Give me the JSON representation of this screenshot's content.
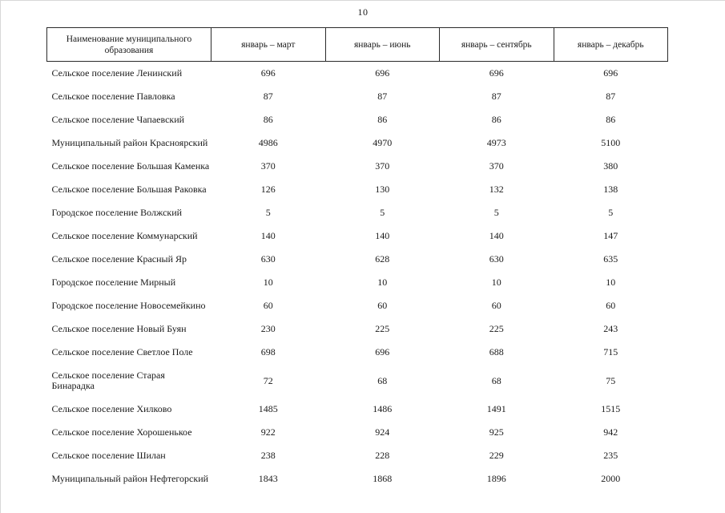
{
  "page": {
    "number": "10"
  },
  "table": {
    "columns": [
      "Наименование муниципального образования",
      "январь – март",
      "январь – июнь",
      "январь – сентябрь",
      "январь – декабрь"
    ],
    "rows": [
      {
        "name": "Сельское поселение Ленинский",
        "values": [
          "696",
          "696",
          "696",
          "696"
        ]
      },
      {
        "name": "Сельское поселение Павловка",
        "values": [
          "87",
          "87",
          "87",
          "87"
        ]
      },
      {
        "name": "Сельское поселение Чапаевский",
        "values": [
          "86",
          "86",
          "86",
          "86"
        ]
      },
      {
        "name": "Муниципальный район Красноярский",
        "values": [
          "4986",
          "4970",
          "4973",
          "5100"
        ]
      },
      {
        "name": "Сельское поселение Большая Каменка",
        "values": [
          "370",
          "370",
          "370",
          "380"
        ]
      },
      {
        "name": "Сельское поселение Большая Раковка",
        "values": [
          "126",
          "130",
          "132",
          "138"
        ]
      },
      {
        "name": "Городское поселение Волжский",
        "values": [
          "5",
          "5",
          "5",
          "5"
        ]
      },
      {
        "name": "Сельское поселение Коммунарский",
        "values": [
          "140",
          "140",
          "140",
          "147"
        ]
      },
      {
        "name": "Сельское поселение Красный Яр",
        "values": [
          "630",
          "628",
          "630",
          "635"
        ]
      },
      {
        "name": "Городское поселение Мирный",
        "values": [
          "10",
          "10",
          "10",
          "10"
        ]
      },
      {
        "name": "Городское поселение Новосемейкино",
        "values": [
          "60",
          "60",
          "60",
          "60"
        ]
      },
      {
        "name": "Сельское поселение Новый Буян",
        "values": [
          "230",
          "225",
          "225",
          "243"
        ]
      },
      {
        "name": "Сельское поселение Светлое Поле",
        "values": [
          "698",
          "696",
          "688",
          "715"
        ]
      },
      {
        "name": "Сельское поселение Старая Бинарадка",
        "values": [
          "72",
          "68",
          "68",
          "75"
        ]
      },
      {
        "name": "Сельское поселение Хилково",
        "values": [
          "1485",
          "1486",
          "1491",
          "1515"
        ]
      },
      {
        "name": "Сельское поселение Хорошенькое",
        "values": [
          "922",
          "924",
          "925",
          "942"
        ]
      },
      {
        "name": "Сельское поселение Шилан",
        "values": [
          "238",
          "228",
          "229",
          "235"
        ]
      },
      {
        "name": "Муниципальный район Нефтегорский",
        "values": [
          "1843",
          "1868",
          "1896",
          "2000"
        ]
      }
    ]
  }
}
